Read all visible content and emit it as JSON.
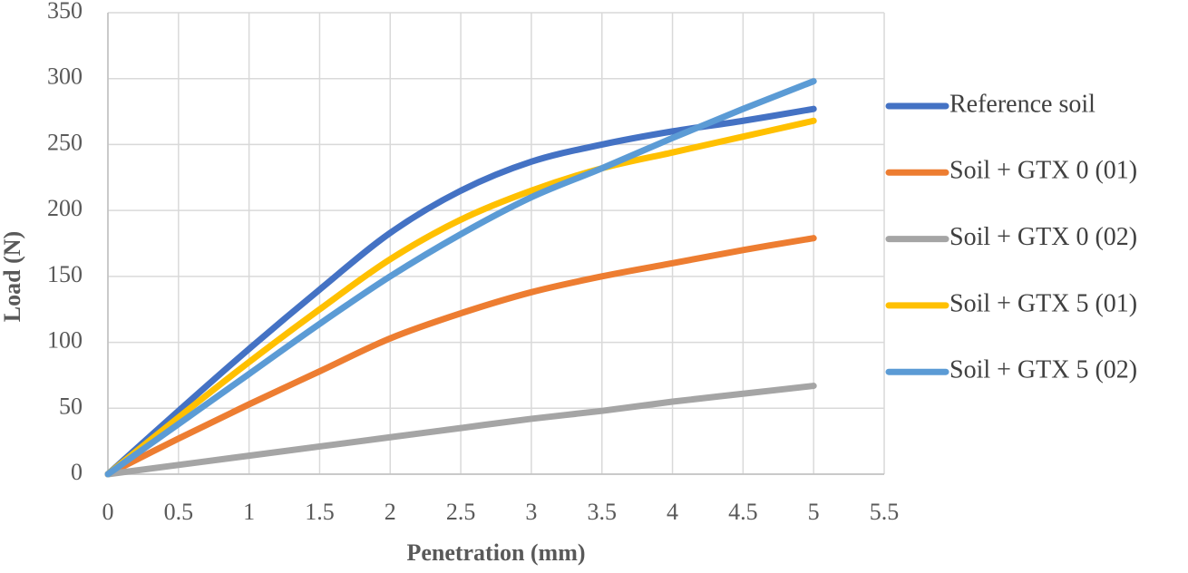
{
  "chart_data": {
    "type": "line",
    "x_label": "Penetration (mm)",
    "y_label": "Load (N)",
    "x": [
      0,
      0.5,
      1,
      1.5,
      2,
      2.5,
      3,
      3.5,
      4,
      4.5,
      5
    ],
    "series": [
      {
        "name": "Reference soil",
        "color": "#4472c4",
        "values": [
          0,
          48,
          95,
          140,
          183,
          215,
          237,
          250,
          260,
          268,
          277
        ]
      },
      {
        "name": "Soil + GTX 0 (01)",
        "color": "#ed7d31",
        "values": [
          0,
          27,
          53,
          78,
          103,
          122,
          138,
          150,
          160,
          170,
          179
        ]
      },
      {
        "name": "Soil + GTX 0 (02)",
        "color": "#a5a5a5",
        "values": [
          0,
          7,
          14,
          21,
          28,
          35,
          42,
          48,
          55,
          61,
          67
        ]
      },
      {
        "name": "Soil + GTX 5 (01)",
        "color": "#ffc000",
        "values": [
          0,
          43,
          85,
          125,
          163,
          193,
          215,
          232,
          244,
          256,
          268
        ]
      },
      {
        "name": "Soil + GTX 5 (02)",
        "color": "#5b9bd5",
        "values": [
          0,
          38,
          76,
          114,
          150,
          182,
          210,
          232,
          255,
          277,
          298
        ]
      }
    ],
    "xlim": [
      0,
      5.5
    ],
    "xticks": [
      0,
      0.5,
      1,
      1.5,
      2,
      2.5,
      3,
      3.5,
      4,
      4.5,
      5,
      5.5
    ],
    "ylim": [
      0,
      350
    ],
    "yticks": [
      0,
      50,
      100,
      150,
      200,
      250,
      300,
      350
    ],
    "grid": true,
    "smooth": true,
    "legend": "right"
  }
}
